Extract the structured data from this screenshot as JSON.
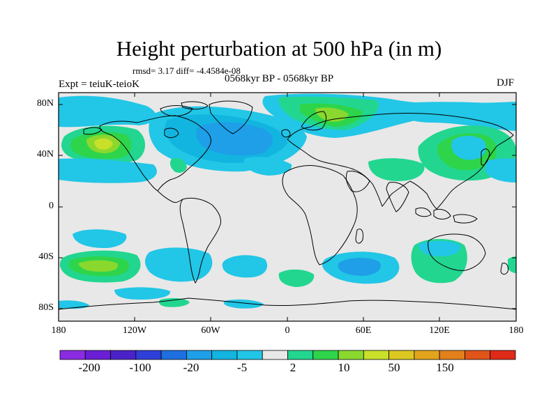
{
  "title": "Height perturbation at 500 hPa (in m)",
  "stats": "rmsd= 3.17 diff= -4.4584e-08",
  "experiment": "Expt = teiuK-teioK",
  "period": "0568kyr BP - 0568kyr BP",
  "season": "DJF",
  "map": {
    "projection": "cylindrical-equidistant",
    "lon_range": [
      -180,
      180
    ],
    "lat_range": [
      -90,
      90
    ],
    "y_tick_labels": [
      "80N",
      "40N",
      "0",
      "40S",
      "80S"
    ],
    "x_tick_labels": [
      "180",
      "120W",
      "60W",
      "0",
      "60E",
      "120E",
      "180"
    ],
    "background_color": "#e8e8e8",
    "land_outline_color": "#000000"
  },
  "colorbar": {
    "colors": [
      "#8a2be2",
      "#6a1fd6",
      "#4b22c8",
      "#2e3fd8",
      "#1e6fe0",
      "#1e9fe8",
      "#12b4e0",
      "#22c6e6",
      "#e8e8e8",
      "#22d690",
      "#2ed44a",
      "#8ad82e",
      "#c8e02a",
      "#dcc820",
      "#e2a41c",
      "#e2801c",
      "#e05418",
      "#e02a18"
    ],
    "labels": [
      "-200",
      "-100",
      "-20",
      "-5",
      "2",
      "10",
      "50",
      "150"
    ]
  }
}
